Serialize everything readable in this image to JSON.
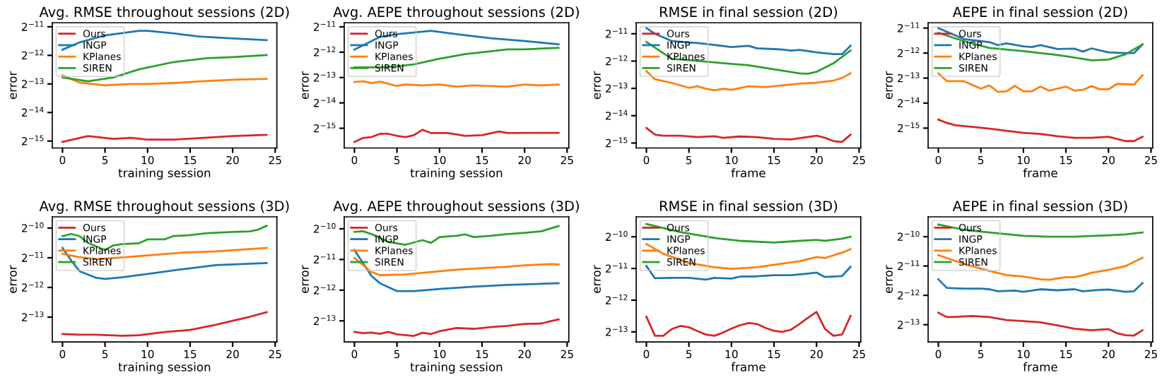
{
  "chart_data": [
    {
      "type": "line",
      "title": "Avg. RMSE throughout sessions (2D)",
      "xlabel": "training session",
      "ylabel": "error",
      "log": "y",
      "grid": false,
      "legend": "top left",
      "xlim": [
        -1.2,
        25.2
      ],
      "xticks": [
        0,
        5,
        10,
        15,
        20,
        25
      ],
      "ylim": [
        2.58e-05,
        0.000538
      ],
      "yticks": [
        {
          "value": 0.00048828125,
          "label": "2$^{−11}$"
        },
        {
          "value": 0.000244140625,
          "label": "2$^{−12}$"
        },
        {
          "value": 0.0001220703125,
          "label": "2$^{−13}$"
        },
        {
          "value": 6.103515625e-05,
          "label": "2$^{−14}$"
        },
        {
          "value": 3.0517578125e-05,
          "label": "2$^{−15}$"
        }
      ],
      "series": [
        {
          "name": "Ours",
          "color": "#d62728",
          "x": [
            0,
            3,
            6,
            8,
            10,
            13,
            16,
            20,
            24
          ],
          "values": [
            2.99e-05,
            3.44e-05,
            3.22e-05,
            3.3e-05,
            3.16e-05,
            3.16e-05,
            3.27e-05,
            3.45e-05,
            3.55e-05
          ]
        },
        {
          "name": "INGP",
          "color": "#1f77b4",
          "x": [
            0,
            2,
            5,
            9,
            10,
            13,
            16,
            20,
            24
          ],
          "values": [
            0.00028,
            0.000334,
            0.000397,
            0.000443,
            0.000443,
            0.000417,
            0.000386,
            0.000368,
            0.000353
          ]
        },
        {
          "name": "KPlanes",
          "color": "#ff7f0e",
          "x": [
            0,
            2,
            5,
            8,
            10,
            14,
            17,
            20,
            24
          ],
          "values": [
            0.00015,
            0.000126,
            0.000118,
            0.000122,
            0.000122,
            0.000126,
            0.000131,
            0.000135,
            0.000138
          ]
        },
        {
          "name": "SIREN",
          "color": "#2ca02c",
          "x": [
            0,
            3,
            6,
            9,
            13,
            17,
            20,
            24
          ],
          "values": [
            0.000143,
            0.00013,
            0.000143,
            0.000174,
            0.000207,
            0.000228,
            0.000234,
            0.000246
          ]
        }
      ]
    },
    {
      "type": "line",
      "title": "Avg. AEPE throughout sessions (2D)",
      "xlabel": "training session",
      "ylabel": "error",
      "log": "y",
      "grid": false,
      "legend": "top left",
      "xlim": [
        -1.2,
        25.2
      ],
      "xticks": [
        0,
        5,
        10,
        15,
        20,
        25
      ],
      "ylim": [
        1.78e-05,
        0.000545
      ],
      "yticks": [
        {
          "value": 0.00048828125,
          "label": "2$^{−11}$"
        },
        {
          "value": 0.000244140625,
          "label": "2$^{−12}$"
        },
        {
          "value": 0.0001220703125,
          "label": "2$^{−13}$"
        },
        {
          "value": 6.103515625e-05,
          "label": "2$^{−14}$"
        },
        {
          "value": 3.0517578125e-05,
          "label": "2$^{−15}$"
        }
      ],
      "series": [
        {
          "name": "Ours",
          "color": "#d62728",
          "x": [
            0,
            1,
            2,
            3,
            4,
            5,
            6,
            7,
            8,
            9,
            11,
            13,
            15,
            17,
            18,
            24
          ],
          "values": [
            2.1e-05,
            2.34e-05,
            2.4e-05,
            2.62e-05,
            2.62e-05,
            2.48e-05,
            2.4e-05,
            2.53e-05,
            2.93e-05,
            2.68e-05,
            2.68e-05,
            2.48e-05,
            2.53e-05,
            2.79e-05,
            2.68e-05,
            2.69e-05
          ]
        },
        {
          "name": "INGP",
          "color": "#1f77b4",
          "x": [
            0,
            3,
            5,
            9,
            12,
            16,
            20,
            24
          ],
          "values": [
            0.000262,
            0.00037,
            0.000399,
            0.000437,
            0.000399,
            0.000357,
            0.000331,
            0.000303
          ]
        },
        {
          "name": "KPlanes",
          "color": "#ff7f0e",
          "x": [
            0,
            1,
            2,
            3,
            5,
            6,
            8,
            10,
            12,
            14,
            16,
            18,
            20,
            22,
            24
          ],
          "values": [
            0.000108,
            0.00011,
            0.000105,
            0.000109,
            9.71e-05,
            0.000101,
            9.85e-05,
            0.000101,
            9.51e-05,
            9.85e-05,
            9.65e-05,
            9.51e-05,
            0.000101,
            9.85e-05,
            0.000101
          ]
        },
        {
          "name": "SIREN",
          "color": "#2ca02c",
          "x": [
            0,
            3,
            5,
            7,
            10,
            13,
            16,
            18,
            20,
            24
          ],
          "values": [
            0.000161,
            0.000161,
            0.000166,
            0.000175,
            0.000204,
            0.000231,
            0.00025,
            0.000264,
            0.000264,
            0.000275
          ]
        }
      ]
    },
    {
      "type": "line",
      "title": "RMSE in final session (2D)",
      "xlabel": "frame",
      "ylabel": "error",
      "log": "y",
      "grid": false,
      "legend": "top left",
      "xlim": [
        -1.2,
        25.2
      ],
      "xticks": [
        0,
        5,
        10,
        15,
        20,
        25
      ],
      "ylim": [
        2.69e-05,
        0.000645
      ],
      "yticks": [
        {
          "value": 0.00048828125,
          "label": "2$^{−11}$"
        },
        {
          "value": 0.000244140625,
          "label": "2$^{−12}$"
        },
        {
          "value": 0.0001220703125,
          "label": "2$^{−13}$"
        },
        {
          "value": 6.103515625e-05,
          "label": "2$^{−14}$"
        },
        {
          "value": 3.0517578125e-05,
          "label": "2$^{−15}$"
        }
      ],
      "series": [
        {
          "name": "Ours",
          "color": "#d62728",
          "x": [
            0,
            1,
            2,
            4,
            6,
            8,
            9,
            11,
            13,
            15,
            17,
            20,
            21,
            22,
            23,
            24
          ],
          "values": [
            4.47e-05,
            3.78e-05,
            3.68e-05,
            3.68e-05,
            3.55e-05,
            3.63e-05,
            3.48e-05,
            3.6e-05,
            3.55e-05,
            3.39e-05,
            3.34e-05,
            3.68e-05,
            3.48e-05,
            3.2e-05,
            3.14e-05,
            3.76e-05
          ]
        },
        {
          "name": "INGP",
          "color": "#1f77b4",
          "x": [
            0,
            1,
            3,
            5,
            6,
            8,
            10,
            12,
            13,
            15,
            16,
            17,
            18,
            20,
            22,
            23,
            24
          ],
          "values": [
            0.000565,
            0.000488,
            0.000405,
            0.000391,
            0.000386,
            0.000368,
            0.000348,
            0.00036,
            0.000338,
            0.000331,
            0.000327,
            0.000318,
            0.000324,
            0.000305,
            0.000291,
            0.000291,
            0.00036
          ]
        },
        {
          "name": "KPlanes",
          "color": "#ff7f0e",
          "x": [
            0,
            1,
            3,
            5,
            6,
            7,
            8,
            9,
            10,
            12,
            14,
            16,
            18,
            20,
            22,
            23,
            24
          ],
          "values": [
            0.000189,
            0.000154,
            0.00014,
            0.000124,
            0.000129,
            0.000121,
            0.000116,
            0.000121,
            0.000118,
            0.000129,
            0.000126,
            0.000132,
            0.000138,
            0.000141,
            0.000149,
            0.000159,
            0.000179
          ]
        },
        {
          "name": "SIREN",
          "color": "#2ca02c",
          "x": [
            0,
            3,
            5,
            8,
            12,
            15,
            18,
            19,
            20,
            22,
            24
          ],
          "values": [
            0.000397,
            0.000258,
            0.00025,
            0.000236,
            0.00022,
            0.000198,
            0.000179,
            0.000177,
            0.000186,
            0.000231,
            0.00032
          ]
        }
      ]
    },
    {
      "type": "line",
      "title": "AEPE in final session (2D)",
      "xlabel": "frame",
      "ylabel": "error",
      "log": "y",
      "grid": false,
      "legend": "top left",
      "xlim": [
        -1.2,
        25.2
      ],
      "xticks": [
        0,
        5,
        10,
        15,
        20,
        25
      ],
      "ylim": [
        1.76e-05,
        0.000565
      ],
      "yticks": [
        {
          "value": 0.00048828125,
          "label": "2$^{−11}$"
        },
        {
          "value": 0.000244140625,
          "label": "2$^{−12}$"
        },
        {
          "value": 0.0001220703125,
          "label": "2$^{−13}$"
        },
        {
          "value": 6.103515625e-05,
          "label": "2$^{−14}$"
        },
        {
          "value": 3.0517578125e-05,
          "label": "2$^{−15}$"
        }
      ],
      "series": [
        {
          "name": "Ours",
          "color": "#d62728",
          "x": [
            0,
            1,
            2,
            4,
            6,
            8,
            10,
            12,
            14,
            16,
            18,
            20,
            22,
            23,
            24
          ],
          "values": [
            3.86e-05,
            3.53e-05,
            3.3e-05,
            3.16e-05,
            3.01e-05,
            2.83e-05,
            2.68e-05,
            2.6e-05,
            2.44e-05,
            2.33e-05,
            2.33e-05,
            2.4e-05,
            2.13e-05,
            2.13e-05,
            2.4e-05
          ]
        },
        {
          "name": "INGP",
          "color": "#1f77b4",
          "x": [
            0,
            3,
            6,
            7,
            8,
            10,
            11,
            12,
            14,
            16,
            17,
            18,
            20,
            22,
            23,
            24
          ],
          "values": [
            0.000488,
            0.00036,
            0.000331,
            0.000305,
            0.00032,
            0.000294,
            0.000288,
            0.000305,
            0.000273,
            0.000276,
            0.000254,
            0.000278,
            0.000249,
            0.000244,
            0.000244,
            0.000311
          ]
        },
        {
          "name": "KPlanes",
          "color": "#ff7f0e",
          "x": [
            0,
            1,
            3,
            5,
            6,
            7,
            8,
            9,
            10,
            11,
            12,
            13,
            15,
            16,
            17,
            18,
            19,
            20,
            21,
            23,
            24
          ],
          "values": [
            0.000139,
            0.000112,
            0.000112,
            9.12e-05,
            9.99e-05,
            8.34e-05,
            8.46e-05,
            9.85e-05,
            8.46e-05,
            8.46e-05,
            9.65e-05,
            8.63e-05,
            9.65e-05,
            8.63e-05,
            8.82e-05,
            9.78e-05,
            8.94e-05,
            8.94e-05,
            0.000104,
            0.000102,
            0.000132
          ]
        },
        {
          "name": "SIREN",
          "color": "#2ca02c",
          "x": [
            0,
            3,
            6,
            10,
            14,
            17,
            18,
            20,
            22,
            24
          ],
          "values": [
            0.000428,
            0.00034,
            0.000282,
            0.000258,
            0.000231,
            0.000208,
            0.0002,
            0.000204,
            0.000236,
            0.000311
          ]
        }
      ]
    },
    {
      "type": "line",
      "title": "Avg. RMSE throughout sessions (3D)",
      "xlabel": "training session",
      "ylabel": "error",
      "log": "y",
      "grid": false,
      "legend": "top left",
      "xlim": [
        -1.2,
        25.2
      ],
      "xticks": [
        0,
        5,
        10,
        15,
        20,
        25
      ],
      "ylim": [
        6.83e-05,
        0.00127
      ],
      "yticks": [
        {
          "value": 0.0009765625,
          "label": "2$^{−10}$"
        },
        {
          "value": 0.00048828125,
          "label": "2$^{−11}$"
        },
        {
          "value": 0.000244140625,
          "label": "2$^{−12}$"
        },
        {
          "value": 0.0001220703125,
          "label": "2$^{−13}$"
        }
      ],
      "series": [
        {
          "name": "Ours",
          "color": "#d62728",
          "x": [
            0,
            2,
            4,
            7,
            9,
            12,
            15,
            18,
            20,
            22,
            24
          ],
          "values": [
            8.22e-05,
            8.11e-05,
            8.11e-05,
            7.89e-05,
            8e-05,
            8.63e-05,
            9.06e-05,
            0.000102,
            0.000112,
            0.000123,
            0.000137
          ]
        },
        {
          "name": "INGP",
          "color": "#1f77b4",
          "x": [
            0,
            1,
            2,
            4,
            5,
            7,
            10,
            14,
            18,
            21,
            24
          ],
          "values": [
            0.000614,
            0.000462,
            0.000357,
            0.000305,
            0.000298,
            0.000309,
            0.000334,
            0.000373,
            0.000411,
            0.000422,
            0.000431
          ]
        },
        {
          "name": "KPlanes",
          "color": "#ff7f0e",
          "x": [
            0,
            2,
            4,
            6,
            10,
            14,
            18,
            24
          ],
          "values": [
            0.000534,
            0.000495,
            0.000472,
            0.000485,
            0.000516,
            0.00055,
            0.000568,
            0.000614
          ]
        },
        {
          "name": "SIREN",
          "color": "#2ca02c",
          "x": [
            0,
            1,
            2,
            3,
            5,
            6,
            7,
            9,
            10,
            12,
            13,
            15,
            17,
            20,
            22,
            23,
            24
          ],
          "values": [
            0.00081,
            0.000851,
            0.00081,
            0.00069,
            0.000585,
            0.000653,
            0.000672,
            0.000686,
            0.00075,
            0.00075,
            0.00081,
            0.000827,
            0.000868,
            0.000893,
            0.000905,
            0.000943,
            0.00103
          ]
        }
      ]
    },
    {
      "type": "line",
      "title": "Avg. AEPE throughout sessions (3D)",
      "xlabel": "training session",
      "ylabel": "error",
      "log": "y",
      "grid": false,
      "legend": "top left",
      "xlim": [
        -1.2,
        25.2
      ],
      "xticks": [
        0,
        5,
        10,
        15,
        20,
        25
      ],
      "ylim": [
        7.57e-05,
        0.00128
      ],
      "yticks": [
        {
          "value": 0.0009765625,
          "label": "2$^{−10}$"
        },
        {
          "value": 0.00048828125,
          "label": "2$^{−11}$"
        },
        {
          "value": 0.000244140625,
          "label": "2$^{−12}$"
        },
        {
          "value": 0.0001220703125,
          "label": "2$^{−13}$"
        }
      ],
      "series": [
        {
          "name": "Ours",
          "color": "#d62728",
          "x": [
            0,
            1,
            2,
            3,
            4,
            5,
            7,
            8,
            9,
            10,
            12,
            14,
            16,
            18,
            20,
            22,
            23,
            24
          ],
          "values": [
            9.51e-05,
            9.26e-05,
            9.38e-05,
            9.12e-05,
            9.51e-05,
            9e-05,
            8.69e-05,
            9.32e-05,
            9.06e-05,
            9.65e-05,
            0.000104,
            0.000102,
            0.000106,
            0.000109,
            0.000114,
            0.000115,
            0.000121,
            0.000126
          ]
        },
        {
          "name": "INGP",
          "color": "#1f77b4",
          "x": [
            0,
            2,
            3,
            5,
            7,
            10,
            14,
            18,
            24
          ],
          "values": [
            0.000605,
            0.000336,
            0.000286,
            0.000239,
            0.000239,
            0.000251,
            0.000264,
            0.000275,
            0.000286
          ]
        },
        {
          "name": "KPlanes",
          "color": "#ff7f0e",
          "x": [
            0,
            2,
            3,
            6,
            9,
            12,
            15,
            18,
            20,
            23,
            24
          ],
          "values": [
            0.000506,
            0.000368,
            0.000343,
            0.000348,
            0.000368,
            0.000388,
            0.000402,
            0.000414,
            0.000428,
            0.00044,
            0.000437
          ]
        },
        {
          "name": "SIREN",
          "color": "#2ca02c",
          "x": [
            0,
            1,
            2,
            4,
            6,
            8,
            9,
            10,
            12,
            13,
            14,
            16,
            18,
            20,
            22,
            24
          ],
          "values": [
            0.000911,
            0.000924,
            0.000868,
            0.000725,
            0.000681,
            0.000756,
            0.00071,
            0.00081,
            0.000833,
            0.000862,
            0.00081,
            0.000833,
            0.000868,
            0.000893,
            0.000924,
            0.00104
          ]
        }
      ]
    },
    {
      "type": "line",
      "title": "RMSE in final session (3D)",
      "xlabel": "frame",
      "ylabel": "error",
      "log": "y",
      "grid": false,
      "legend": "top left",
      "xlim": [
        -1.2,
        25.2
      ],
      "xticks": [
        0,
        5,
        10,
        15,
        20,
        25
      ],
      "ylim": [
        9.78e-05,
        0.00151
      ],
      "yticks": [
        {
          "value": 0.0009765625,
          "label": "2$^{−10}$"
        },
        {
          "value": 0.00048828125,
          "label": "2$^{−11}$"
        },
        {
          "value": 0.000244140625,
          "label": "2$^{−12}$"
        },
        {
          "value": 0.0001220703125,
          "label": "2$^{−13}$"
        }
      ],
      "series": [
        {
          "name": "Ours",
          "color": "#d62728",
          "x": [
            0,
            1,
            2,
            3,
            4,
            5,
            6,
            7,
            8,
            9,
            10,
            11,
            12,
            13,
            14,
            15,
            16,
            17,
            18,
            19,
            20,
            21,
            22,
            23,
            24
          ],
          "values": [
            0.00017,
            0.000112,
            0.000112,
            0.00013,
            0.000139,
            0.000135,
            0.000124,
            0.000115,
            0.000112,
            0.00012,
            0.000131,
            0.000141,
            0.000148,
            0.000145,
            0.000133,
            0.000125,
            0.000122,
            0.000128,
            0.000145,
            0.000166,
            0.000189,
            0.00013,
            0.000112,
            0.000115,
            0.000173
          ]
        },
        {
          "name": "INGP",
          "color": "#1f77b4",
          "x": [
            0,
            1,
            3,
            5,
            7,
            8,
            10,
            11,
            13,
            15,
            17,
            19,
            20,
            21,
            23,
            24
          ],
          "values": [
            0.000516,
            0.000394,
            0.000397,
            0.000397,
            0.000383,
            0.000397,
            0.000391,
            0.000408,
            0.000411,
            0.000422,
            0.000422,
            0.000437,
            0.000446,
            0.000405,
            0.000414,
            0.000506
          ]
        },
        {
          "name": "KPlanes",
          "color": "#ff7f0e",
          "x": [
            0,
            2,
            5,
            8,
            10,
            13,
            15,
            18,
            20,
            21,
            23,
            24
          ],
          "values": [
            0.000833,
            0.000672,
            0.00055,
            0.000502,
            0.000485,
            0.000502,
            0.00053,
            0.000572,
            0.000627,
            0.000614,
            0.00069,
            0.000745
          ]
        },
        {
          "name": "SIREN",
          "color": "#2ca02c",
          "x": [
            0,
            4,
            8,
            11,
            15,
            18,
            20,
            21,
            23,
            24
          ],
          "values": [
            0.00129,
            0.00108,
            0.00095,
            0.000893,
            0.000862,
            0.000893,
            0.000911,
            0.000893,
            0.000937,
            0.000977
          ]
        }
      ]
    },
    {
      "type": "line",
      "title": "AEPE in final session (3D)",
      "xlabel": "frame",
      "ylabel": "error",
      "log": "y",
      "grid": false,
      "legend": "top left",
      "xlim": [
        -1.2,
        25.2
      ],
      "xticks": [
        0,
        5,
        10,
        15,
        20,
        25
      ],
      "ylim": [
        8.11e-05,
        0.00156
      ],
      "yticks": [
        {
          "value": 0.0009765625,
          "label": "2$^{−10}$"
        },
        {
          "value": 0.00048828125,
          "label": "2$^{−11}$"
        },
        {
          "value": 0.000244140625,
          "label": "2$^{−12}$"
        },
        {
          "value": 0.0001220703125,
          "label": "2$^{−13}$"
        }
      ],
      "series": [
        {
          "name": "Ours",
          "color": "#d62728",
          "x": [
            0,
            1,
            2,
            4,
            6,
            8,
            10,
            12,
            14,
            16,
            18,
            20,
            21,
            22,
            23,
            24
          ],
          "values": [
            0.000162,
            0.000146,
            0.000147,
            0.00015,
            0.000146,
            0.000136,
            0.000133,
            0.000129,
            0.00012,
            0.000111,
            0.000107,
            0.00011,
            9.99e-05,
            9.51e-05,
            9.45e-05,
            0.000107
          ]
        },
        {
          "name": "INGP",
          "color": "#1f77b4",
          "x": [
            0,
            1,
            3,
            5,
            6,
            7,
            9,
            10,
            12,
            14,
            16,
            17,
            19,
            20,
            22,
            23,
            24
          ],
          "values": [
            0.000357,
            0.000291,
            0.000286,
            0.000286,
            0.000282,
            0.000269,
            0.000273,
            0.000265,
            0.000282,
            0.000275,
            0.000282,
            0.000269,
            0.000278,
            0.00028,
            0.000265,
            0.000269,
            0.000327
          ]
        },
        {
          "name": "KPlanes",
          "color": "#ff7f0e",
          "x": [
            0,
            3,
            6,
            8,
            10,
            12,
            13,
            15,
            16,
            17,
            18,
            20,
            22,
            24
          ],
          "values": [
            0.000631,
            0.000513,
            0.000434,
            0.000394,
            0.00038,
            0.000357,
            0.000353,
            0.000375,
            0.000375,
            0.000391,
            0.000417,
            0.000446,
            0.000488,
            0.000593
          ]
        },
        {
          "name": "SIREN",
          "color": "#2ca02c",
          "x": [
            0,
            3,
            6,
            10,
            13,
            16,
            20,
            22,
            24
          ],
          "values": [
            0.0013,
            0.00115,
            0.00108,
            0.000997,
            0.000977,
            0.000977,
            0.00101,
            0.00103,
            0.00108
          ]
        }
      ]
    }
  ]
}
